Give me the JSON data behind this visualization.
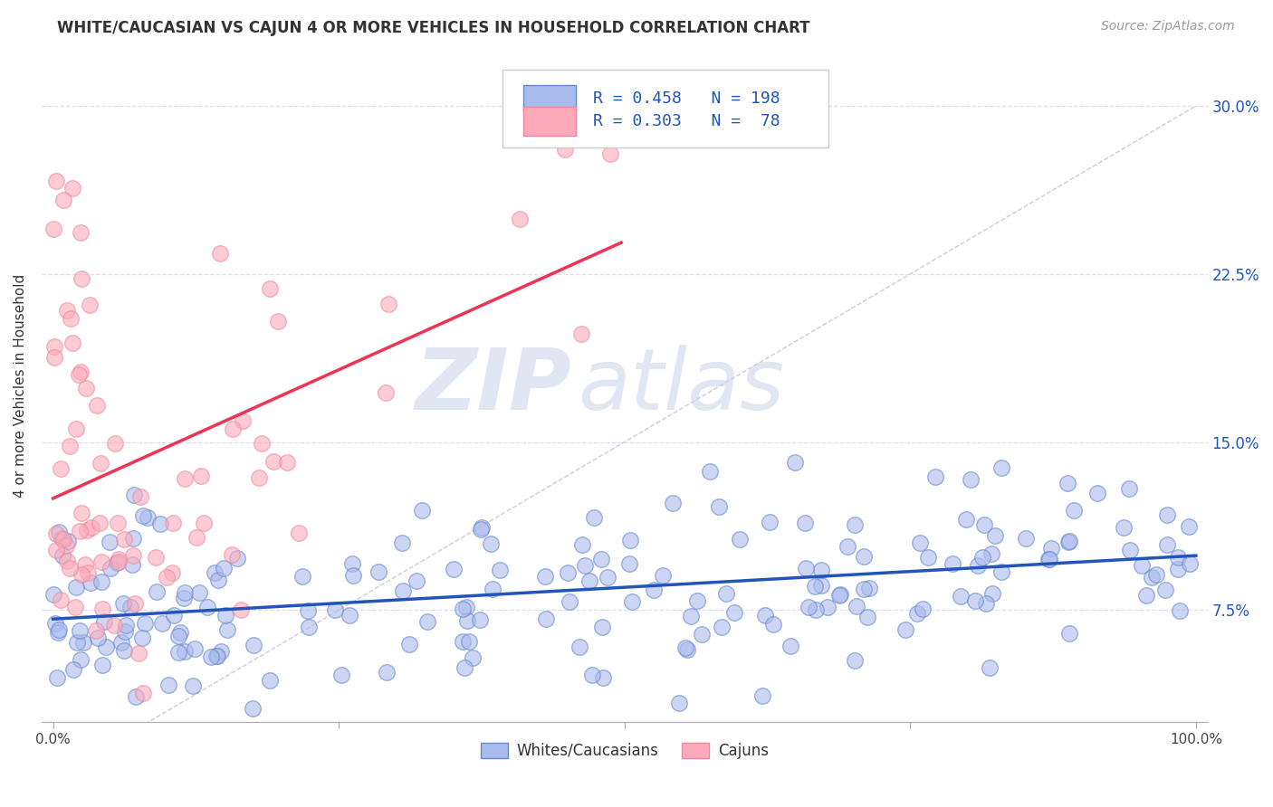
{
  "title": "WHITE/CAUCASIAN VS CAJUN 4 OR MORE VEHICLES IN HOUSEHOLD CORRELATION CHART",
  "source": "Source: ZipAtlas.com",
  "ylabel_label": "4 or more Vehicles in Household",
  "xlabel_label_blue": "Whites/Caucasians",
  "xlabel_label_pink": "Cajuns",
  "blue_R": 0.458,
  "blue_N": 198,
  "pink_R": 0.303,
  "pink_N": 78,
  "blue_color": "#aabbee",
  "pink_color": "#ffaabb",
  "blue_edge_color": "#6688cc",
  "pink_edge_color": "#ee8899",
  "blue_line_color": "#2255bb",
  "pink_line_color": "#ee3355",
  "diag_color": "#ccccdd",
  "watermark_zip": "ZIP",
  "watermark_atlas": "atlas",
  "xmin": 0.0,
  "xmax": 1.0,
  "ymin": 0.025,
  "ymax": 0.325,
  "blue_seed": 12,
  "pink_seed": 99,
  "title_fontsize": 12,
  "source_fontsize": 10
}
